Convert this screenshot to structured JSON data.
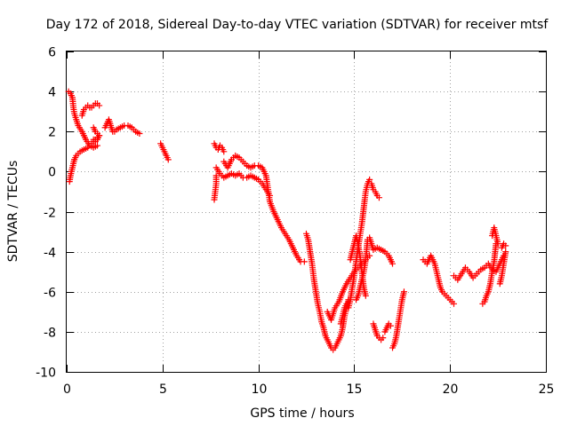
{
  "chart_data": {
    "type": "scatter",
    "title": "Day 172 of 2018, Sidereal Day-to-day VTEC variation (SDTVAR) for receiver mtsf",
    "xlabel": "GPS time / hours",
    "ylabel": "SDTVAR / TECUs",
    "xlim": [
      0,
      25
    ],
    "ylim": [
      -10,
      6
    ],
    "xticks": [
      "0",
      "5",
      "10",
      "15",
      "20",
      "25"
    ],
    "yticks": [
      "-10",
      "-8",
      "-6",
      "-4",
      "-2",
      "0",
      "2",
      "4",
      "6"
    ],
    "xtick_values": [
      0,
      5,
      10,
      15,
      20,
      25
    ],
    "ytick_values": [
      -10,
      -8,
      -6,
      -4,
      -2,
      0,
      2,
      4,
      6
    ],
    "grid": true,
    "marker": "+",
    "color": "#ff0000",
    "segments": [
      {
        "x": [
          0.1,
          0.2,
          0.3,
          0.35,
          0.4,
          0.5,
          0.6,
          0.8,
          1.0,
          1.2,
          1.4,
          1.6
        ],
        "y": [
          4.0,
          3.9,
          3.7,
          3.2,
          2.9,
          2.6,
          2.3,
          2.0,
          1.6,
          1.3,
          1.2,
          1.3
        ]
      },
      {
        "x": [
          0.15,
          0.2,
          0.3,
          0.4
        ],
        "y": [
          -0.5,
          -0.2,
          0.2,
          0.6
        ]
      },
      {
        "x": [
          0.4,
          0.5,
          0.7,
          0.9,
          1.1,
          1.3,
          1.5,
          1.7,
          1.5,
          1.4
        ],
        "y": [
          0.6,
          0.8,
          1.0,
          1.1,
          1.2,
          1.4,
          1.6,
          1.8,
          2.0,
          2.2
        ]
      },
      {
        "x": [
          0.8,
          0.9,
          1.0,
          1.1,
          1.2
        ],
        "y": [
          2.8,
          3.1,
          3.2,
          3.3,
          3.2
        ]
      },
      {
        "x": [
          1.3,
          1.4,
          1.5,
          1.6,
          1.7
        ],
        "y": [
          3.2,
          3.3,
          3.4,
          3.4,
          3.3
        ]
      },
      {
        "x": [
          1.7,
          1.6,
          1.5,
          1.4
        ],
        "y": [
          1.8,
          1.6,
          1.5,
          1.6
        ]
      },
      {
        "x": [
          2.0,
          2.1,
          2.2,
          2.3,
          2.4,
          2.5,
          2.6,
          2.8,
          3.0,
          3.2,
          3.4,
          3.6,
          3.8
        ],
        "y": [
          2.2,
          2.4,
          2.6,
          2.3,
          2.0,
          2.0,
          2.1,
          2.2,
          2.3,
          2.3,
          2.2,
          2.0,
          1.9
        ]
      },
      {
        "x": [
          4.9,
          5.0,
          5.1,
          5.2,
          5.3
        ],
        "y": [
          1.4,
          1.2,
          1.0,
          0.8,
          0.6
        ]
      },
      {
        "x": [
          7.7,
          7.75,
          7.8,
          7.8
        ],
        "y": [
          -1.4,
          -1.0,
          -0.6,
          -0.2
        ]
      },
      {
        "x": [
          7.7,
          7.8,
          7.9,
          8.0,
          8.1,
          8.2
        ],
        "y": [
          1.4,
          1.2,
          1.1,
          1.3,
          1.2,
          1.0
        ]
      },
      {
        "x": [
          7.8,
          8.0,
          8.2,
          8.4,
          8.6,
          8.8,
          9.0,
          9.2,
          9.4,
          9.6,
          9.8,
          10.0,
          10.2,
          10.4,
          10.6
        ],
        "y": [
          0.2,
          -0.1,
          -0.3,
          -0.2,
          -0.1,
          -0.2,
          -0.1,
          -0.3,
          -0.3,
          -0.2,
          -0.3,
          -0.4,
          -0.6,
          -0.9,
          -1.2
        ]
      },
      {
        "x": [
          8.2,
          8.4,
          8.6,
          8.8,
          9.0,
          9.2,
          9.4,
          9.6,
          9.8,
          10.0,
          10.2,
          10.4,
          10.6,
          10.8,
          11.0,
          11.2,
          11.4,
          11.6,
          11.8,
          12.0,
          12.2,
          12.4
        ],
        "y": [
          0.5,
          0.2,
          0.6,
          0.8,
          0.7,
          0.5,
          0.3,
          0.2,
          0.3,
          0.3,
          0.2,
          -0.2,
          -1.5,
          -2.0,
          -2.4,
          -2.8,
          -3.1,
          -3.4,
          -3.8,
          -4.2,
          -4.5,
          -4.5
        ]
      },
      {
        "x": [
          12.5,
          12.6,
          12.7,
          12.8,
          12.9,
          13.0,
          13.1,
          13.2,
          13.3,
          13.4,
          13.5,
          13.6,
          13.7,
          13.8,
          13.9,
          14.0,
          14.1,
          14.2,
          14.3,
          14.4,
          14.5,
          14.6,
          14.7
        ],
        "y": [
          -3.1,
          -3.4,
          -4.0,
          -4.6,
          -5.4,
          -6.0,
          -6.6,
          -7.0,
          -7.5,
          -7.8,
          -8.2,
          -8.4,
          -8.6,
          -8.8,
          -8.9,
          -8.8,
          -8.6,
          -8.4,
          -8.2,
          -7.8,
          -7.2,
          -6.8,
          -6.4
        ]
      },
      {
        "x": [
          13.6,
          13.8,
          14.0,
          14.2,
          14.4,
          14.6,
          14.8,
          15.0,
          15.2,
          15.4,
          15.6,
          15.8
        ],
        "y": [
          -7.0,
          -7.4,
          -6.8,
          -6.5,
          -6.0,
          -5.6,
          -5.3,
          -5.0,
          -4.8,
          -4.6,
          -4.4,
          -4.2
        ]
      },
      {
        "x": [
          14.3,
          14.4,
          14.5,
          14.6,
          14.7,
          14.8,
          14.9,
          15.0,
          15.1,
          15.2,
          15.3,
          15.4,
          15.5,
          15.6,
          15.7,
          15.8
        ],
        "y": [
          -7.6,
          -7.2,
          -6.8,
          -6.6,
          -6.8,
          -6.4,
          -5.8,
          -5.2,
          -4.5,
          -3.8,
          -3.2,
          -2.6,
          -1.8,
          -1.0,
          -0.6,
          -0.4
        ]
      },
      {
        "x": [
          14.8,
          14.9,
          15.0,
          15.1,
          15.2,
          15.3,
          15.4,
          15.5,
          15.6
        ],
        "y": [
          -4.4,
          -4.0,
          -3.6,
          -3.2,
          -3.6,
          -4.2,
          -5.0,
          -5.8,
          -6.2
        ]
      },
      {
        "x": [
          15.1,
          15.2,
          15.3,
          15.4,
          15.5,
          15.6,
          15.7
        ],
        "y": [
          -6.4,
          -6.2,
          -5.8,
          -5.4,
          -5.0,
          -4.4,
          -3.4
        ]
      },
      {
        "x": [
          15.9,
          16.0,
          16.1,
          16.2,
          16.3
        ],
        "y": [
          -0.6,
          -0.9,
          -1.0,
          -1.2,
          -1.3
        ]
      },
      {
        "x": [
          15.8,
          15.9,
          16.0,
          16.2,
          16.4,
          16.6,
          16.8,
          17.0
        ],
        "y": [
          -3.3,
          -3.6,
          -3.9,
          -3.8,
          -3.9,
          -4.0,
          -4.2,
          -4.6
        ]
      },
      {
        "x": [
          16.0,
          16.1,
          16.2,
          16.3,
          16.4,
          16.5
        ],
        "y": [
          -7.6,
          -7.9,
          -8.2,
          -8.3,
          -8.4,
          -8.3
        ]
      },
      {
        "x": [
          16.6,
          16.7,
          16.8,
          16.9
        ],
        "y": [
          -8.0,
          -7.8,
          -7.6,
          -7.7
        ]
      },
      {
        "x": [
          17.0,
          17.1,
          17.2,
          17.3,
          17.4,
          17.5,
          17.6
        ],
        "y": [
          -8.8,
          -8.6,
          -8.2,
          -7.6,
          -7.0,
          -6.4,
          -6.0
        ]
      },
      {
        "x": [
          18.6,
          18.8,
          19.0,
          19.1,
          19.2,
          19.3,
          19.4,
          19.5,
          19.6,
          19.8,
          20.0,
          20.2
        ],
        "y": [
          -4.4,
          -4.6,
          -4.2,
          -4.4,
          -4.6,
          -5.0,
          -5.4,
          -5.8,
          -6.0,
          -6.2,
          -6.4,
          -6.6
        ]
      },
      {
        "x": [
          20.2,
          20.4,
          20.6,
          20.8,
          21.0,
          21.2,
          21.4,
          21.6,
          21.8,
          22.0,
          22.2,
          22.4,
          22.6,
          22.8
        ],
        "y": [
          -5.2,
          -5.4,
          -5.1,
          -4.8,
          -5.0,
          -5.3,
          -5.1,
          -4.9,
          -4.8,
          -4.6,
          -4.9,
          -5.0,
          -4.6,
          -4.2
        ]
      },
      {
        "x": [
          21.7,
          21.8,
          21.9,
          22.0,
          22.1,
          22.2,
          22.3,
          22.4
        ],
        "y": [
          -6.6,
          -6.5,
          -6.2,
          -6.0,
          -5.6,
          -5.0,
          -4.5,
          -3.6
        ]
      },
      {
        "x": [
          22.2,
          22.3,
          22.4,
          22.5
        ],
        "y": [
          -3.2,
          -2.8,
          -3.2,
          -3.6
        ]
      },
      {
        "x": [
          22.6,
          22.7,
          22.8,
          22.9
        ],
        "y": [
          -5.6,
          -5.2,
          -4.6,
          -4.0
        ]
      },
      {
        "x": [
          22.7,
          22.8,
          22.9
        ],
        "y": [
          -3.8,
          -3.6,
          -3.7
        ]
      }
    ]
  }
}
